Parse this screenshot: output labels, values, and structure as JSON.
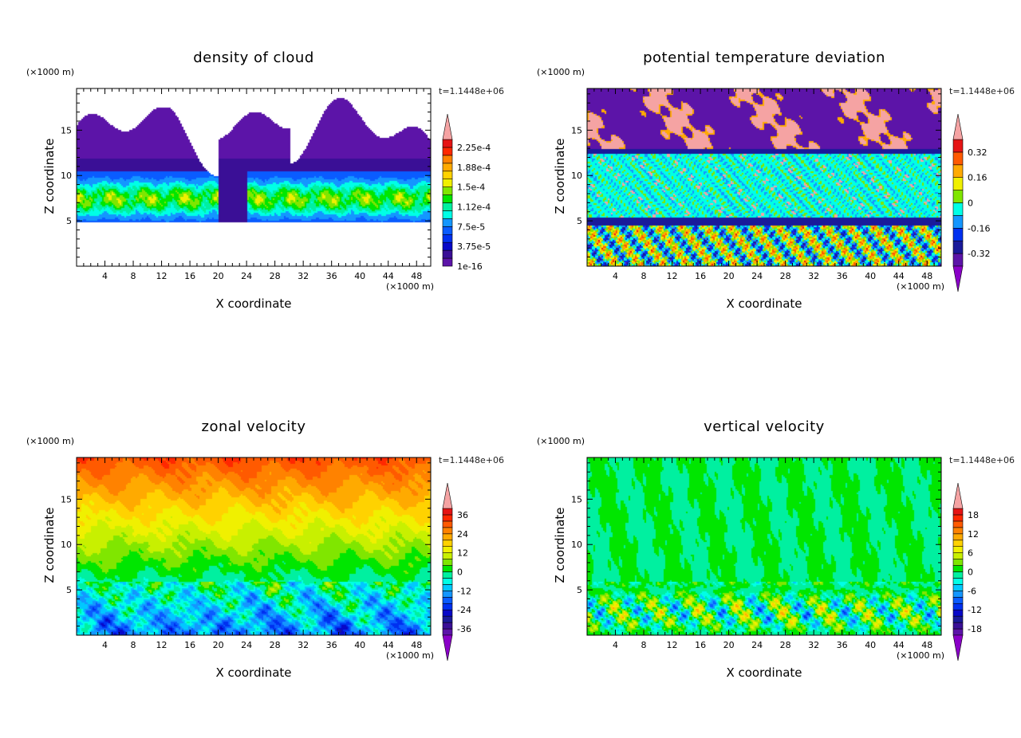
{
  "chart_data": [
    {
      "type": "heatmap",
      "kind": "cloud",
      "title": "density of cloud",
      "xlabel": "X coordinate",
      "ylabel": "Z coordinate",
      "x_unit": "(×1000 m)",
      "y_unit": "(×1000 m)",
      "time_label": "t=1.1448e+06",
      "xlim": [
        0,
        50
      ],
      "ylim": [
        0,
        19.6
      ],
      "xticks": [
        "4",
        "8",
        "12",
        "16",
        "20",
        "24",
        "28",
        "32",
        "36",
        "40",
        "44",
        "48"
      ],
      "yticks": [
        "5",
        "10",
        "15"
      ],
      "colorbar": {
        "labels": [
          "1e-16",
          "3.75e-5",
          "7.5e-5",
          "1.12e-4",
          "1.5e-4",
          "1.88e-4",
          "2.25e-4"
        ],
        "label_values": [
          0,
          3.75e-05,
          7.5e-05,
          0.0001125,
          0.00015,
          0.0001875,
          0.000225
        ],
        "range": [
          0,
          0.00024
        ],
        "boxes": 16,
        "top_triangle": true,
        "bottom_triangle": false
      }
    },
    {
      "type": "heatmap",
      "kind": "temp",
      "title": "potential temperature deviation",
      "xlabel": "X coordinate",
      "ylabel": "Z coordinate",
      "x_unit": "(×1000 m)",
      "y_unit": "(×1000 m)",
      "time_label": "t=1.1448e+06",
      "xlim": [
        0,
        50
      ],
      "ylim": [
        0,
        19.6
      ],
      "xticks": [
        "4",
        "8",
        "12",
        "16",
        "20",
        "24",
        "28",
        "32",
        "36",
        "40",
        "44",
        "48"
      ],
      "yticks": [
        "5",
        "10",
        "15"
      ],
      "colorbar": {
        "labels": [
          "-0.32",
          "-0.16",
          "0",
          "0.16",
          "0.32"
        ],
        "label_values": [
          -0.32,
          -0.16,
          0,
          0.16,
          0.32
        ],
        "range": [
          -0.4,
          0.4
        ],
        "boxes": 10,
        "top_triangle": true,
        "bottom_triangle": true
      }
    },
    {
      "type": "heatmap",
      "kind": "zonal",
      "title": "zonal velocity",
      "xlabel": "X coordinate",
      "ylabel": "Z coordinate",
      "x_unit": "(×1000 m)",
      "y_unit": "(×1000 m)",
      "time_label": "t=1.1448e+06",
      "xlim": [
        0,
        50
      ],
      "ylim": [
        0,
        19.6
      ],
      "xticks": [
        "4",
        "8",
        "12",
        "16",
        "20",
        "24",
        "28",
        "32",
        "36",
        "40",
        "44",
        "48"
      ],
      "yticks": [
        "5",
        "10",
        "15"
      ],
      "colorbar": {
        "labels": [
          "-36",
          "-24",
          "-12",
          "0",
          "12",
          "24",
          "36"
        ],
        "label_values": [
          -36,
          -24,
          -12,
          0,
          12,
          24,
          36
        ],
        "range": [
          -40,
          40
        ],
        "boxes": 20,
        "top_triangle": true,
        "bottom_triangle": true
      }
    },
    {
      "type": "heatmap",
      "kind": "vert",
      "title": "vertical velocity",
      "xlabel": "X coordinate",
      "ylabel": "Z coordinate",
      "x_unit": "(×1000 m)",
      "y_unit": "(×1000 m)",
      "time_label": "t=1.1448e+06",
      "xlim": [
        0,
        50
      ],
      "ylim": [
        0,
        19.6
      ],
      "xticks": [
        "4",
        "8",
        "12",
        "16",
        "20",
        "24",
        "28",
        "32",
        "36",
        "40",
        "44",
        "48"
      ],
      "yticks": [
        "5",
        "10",
        "15"
      ],
      "colorbar": {
        "labels": [
          "-18",
          "-12",
          "-6",
          "0",
          "6",
          "12",
          "18"
        ],
        "label_values": [
          -18,
          -12,
          -6,
          0,
          6,
          12,
          18
        ],
        "range": [
          -20,
          20
        ],
        "boxes": 20,
        "top_triangle": true,
        "bottom_triangle": true
      }
    }
  ],
  "colors": {
    "pink": "#f5a3a3",
    "purple_tri": "#8a00c8"
  }
}
